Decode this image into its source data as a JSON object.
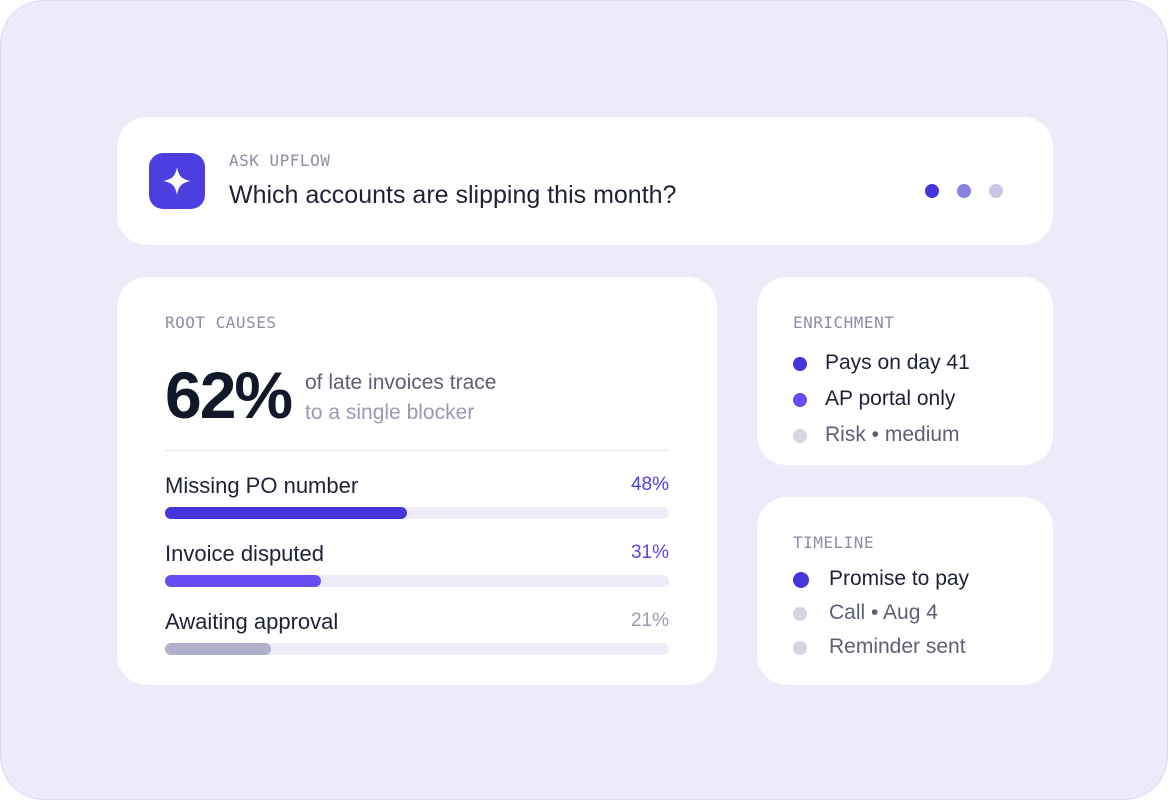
{
  "ask": {
    "label": "ASK UPFLOW",
    "question": "Which accounts are slipping this month?"
  },
  "root_causes": {
    "label": "ROOT CAUSES",
    "headline_value": "62%",
    "headline_line1": "of late invoices trace",
    "headline_line2": "to a single blocker",
    "items": [
      {
        "name": "Missing PO number",
        "pct_label": "48%",
        "value": 48,
        "color": "#4536DB",
        "label_color": "#4B3FE0"
      },
      {
        "name": "Invoice disputed",
        "pct_label": "31%",
        "value": 31,
        "color": "#6A4DF2",
        "label_color": "#5B45EA"
      },
      {
        "name": "Awaiting approval",
        "pct_label": "21%",
        "value": 21,
        "color": "#B0B0CC",
        "label_color": "#9C9AB0"
      }
    ]
  },
  "enrichment": {
    "label": "ENRICHMENT",
    "items": [
      {
        "text": "Pays on day 41",
        "color": "#4536DB",
        "text_color": "#1E2234"
      },
      {
        "text": "AP portal only",
        "color": "#6A4DF2",
        "text_color": "#1E2234"
      },
      {
        "text": "Risk • medium",
        "color": "#D6D5E6",
        "text_color": "#5D5F74"
      }
    ]
  },
  "timeline": {
    "label": "TIMELINE",
    "items": [
      {
        "text": "Promise to pay",
        "color": "#4536DB",
        "text_color": "#1E2234"
      },
      {
        "text": "Call • Aug 4",
        "color": "#D6D5E6",
        "text_color": "#5D5F74"
      },
      {
        "text": "Reminder sent",
        "color": "#D6D5E6",
        "text_color": "#5D5F74"
      }
    ]
  },
  "icons": {
    "ask_icon": "sparkle-icon",
    "loading": "typing-dots-icon"
  }
}
